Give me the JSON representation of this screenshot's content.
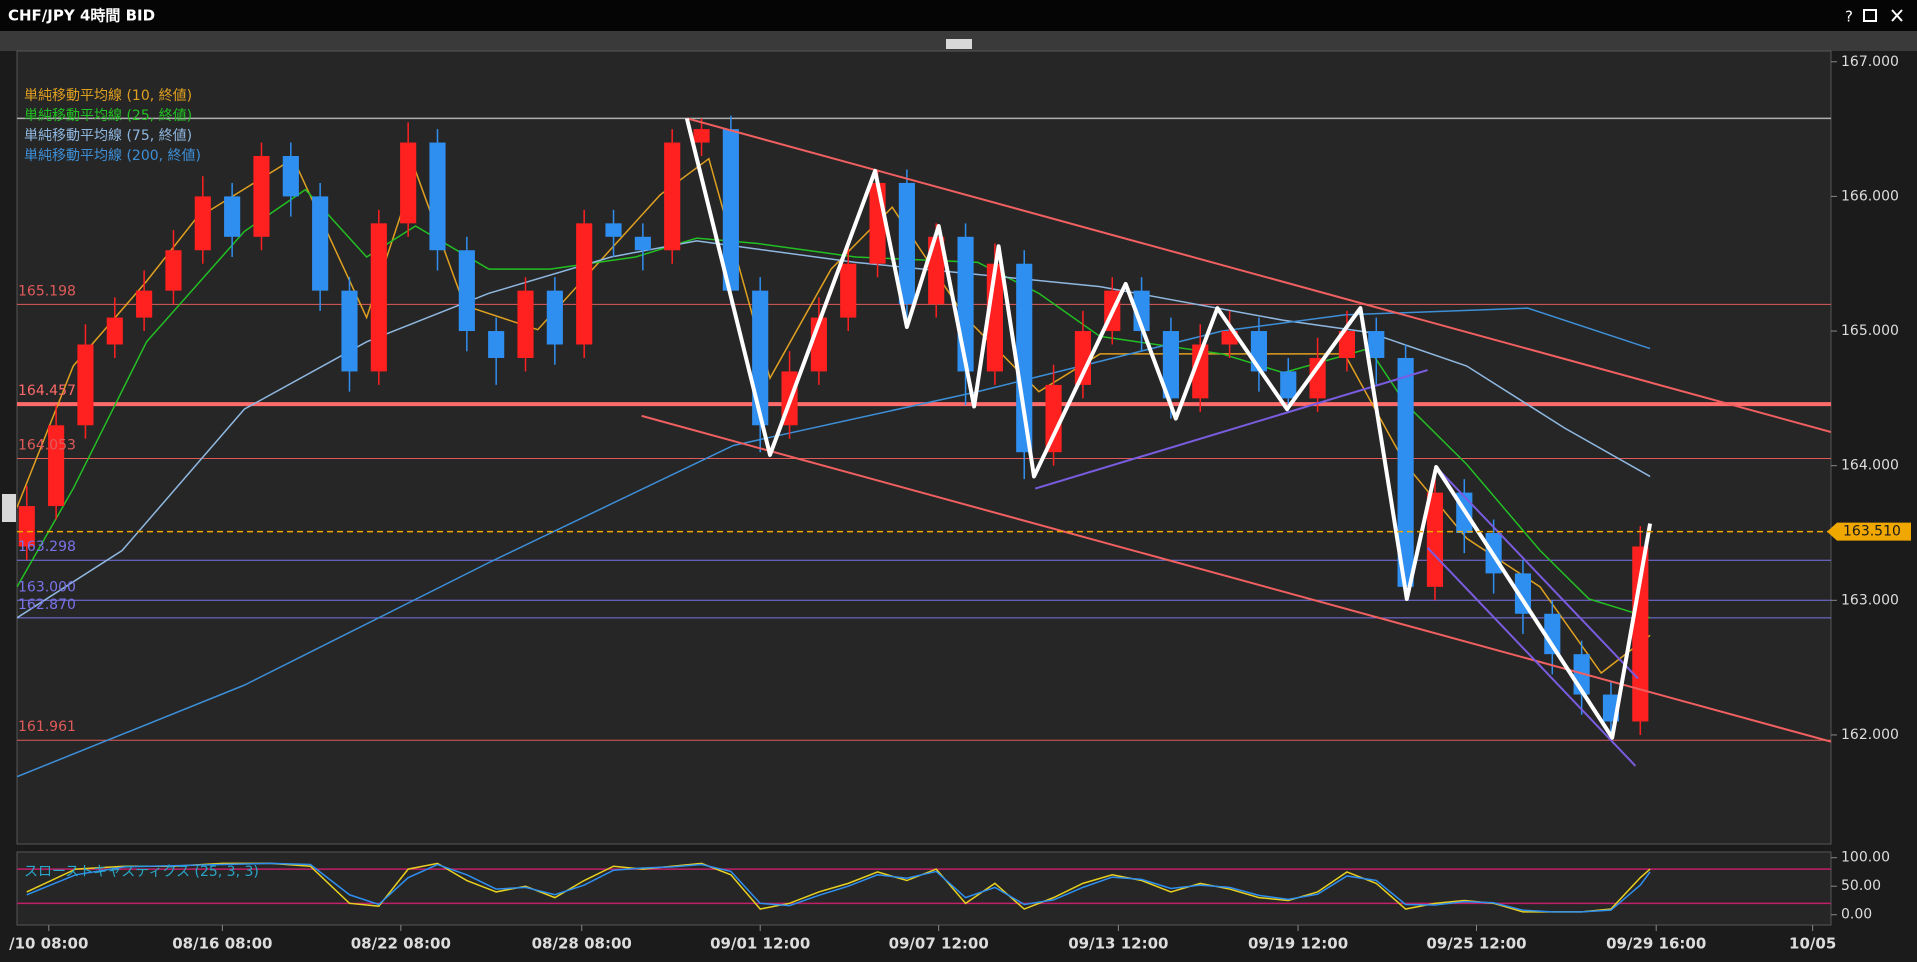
{
  "window": {
    "title": "CHF/JPY 4時間 BID",
    "help": "?"
  },
  "chart_data": [
    {
      "type": "candlestick",
      "xlim": [
        0,
        371
      ],
      "ylim": [
        161.19,
        167.08
      ],
      "yticks": [
        {
          "value": 162,
          "label": "162.000"
        },
        {
          "value": 163,
          "label": "163.000"
        },
        {
          "value": 164,
          "label": "164.000"
        },
        {
          "value": 165,
          "label": "165.000"
        },
        {
          "value": 166,
          "label": "166.000"
        },
        {
          "value": 167,
          "label": "167.000"
        }
      ],
      "xticks": [
        {
          "value": 6.5,
          "label": "/10 08:00"
        },
        {
          "value": 42,
          "label": "08/16 08:00"
        },
        {
          "value": 78.5,
          "label": "08/22 08:00"
        },
        {
          "value": 115.5,
          "label": "08/28 08:00"
        },
        {
          "value": 152,
          "label": "09/01 12:00"
        },
        {
          "value": 188.5,
          "label": "09/07 12:00"
        },
        {
          "value": 225.25,
          "label": "09/13 12:00"
        },
        {
          "value": 262,
          "label": "09/19 12:00"
        },
        {
          "value": 298.5,
          "label": "09/25 12:00"
        },
        {
          "value": 335.25,
          "label": "09/29 16:00"
        },
        {
          "value": 367.25,
          "label": "10/05"
        }
      ],
      "up_color": "#ff2020",
      "down_color": "#2f8ff0",
      "candles": {
        "x": [
          2,
          8,
          14,
          20,
          26,
          32,
          38,
          44,
          50,
          56,
          62,
          68,
          74,
          80,
          86,
          92,
          98,
          104,
          110,
          116,
          122,
          128,
          134,
          140,
          146,
          152,
          158,
          164,
          170,
          176,
          182,
          188,
          194,
          200,
          206,
          212,
          218,
          224,
          230,
          236,
          242,
          248,
          254,
          260,
          266,
          272,
          278,
          284,
          290,
          296,
          302,
          308,
          314,
          320,
          326,
          332
        ],
        "open": [
          163.4,
          163.7,
          164.3,
          164.9,
          165.1,
          165.3,
          165.6,
          166.0,
          165.7,
          166.3,
          166.0,
          165.3,
          164.7,
          165.8,
          166.4,
          165.6,
          165.0,
          164.8,
          165.3,
          164.9,
          165.8,
          165.7,
          165.6,
          166.4,
          166.5,
          165.3,
          164.3,
          164.7,
          165.1,
          165.5,
          166.1,
          165.2,
          165.7,
          164.7,
          165.5,
          164.1,
          164.6,
          165.0,
          165.3,
          165.0,
          164.5,
          164.9,
          165.0,
          164.7,
          164.5,
          164.8,
          165.0,
          164.8,
          163.1,
          163.8,
          163.5,
          163.2,
          162.9,
          162.6,
          162.3,
          162.1
        ],
        "high": [
          163.85,
          164.45,
          165.05,
          165.25,
          165.45,
          165.75,
          166.15,
          166.1,
          166.4,
          166.4,
          166.1,
          165.4,
          165.9,
          166.55,
          166.5,
          165.7,
          165.1,
          165.4,
          165.4,
          165.9,
          165.9,
          165.8,
          166.5,
          166.58,
          166.6,
          165.4,
          164.85,
          165.25,
          165.65,
          166.2,
          166.2,
          165.8,
          165.8,
          165.65,
          165.6,
          164.75,
          165.15,
          165.4,
          165.4,
          165.1,
          165.05,
          165.15,
          165.1,
          164.8,
          164.95,
          165.15,
          165.1,
          164.9,
          163.95,
          163.9,
          163.6,
          163.3,
          163.0,
          162.7,
          162.4,
          163.55
        ],
        "low": [
          163.3,
          163.6,
          164.2,
          164.8,
          165.0,
          165.2,
          165.5,
          165.55,
          165.6,
          165.85,
          165.15,
          164.55,
          164.6,
          165.7,
          165.45,
          164.85,
          164.6,
          164.7,
          164.75,
          164.8,
          165.55,
          165.45,
          165.5,
          166.3,
          165.2,
          164.1,
          164.2,
          164.6,
          165.0,
          165.4,
          165.05,
          165.1,
          164.45,
          164.6,
          163.9,
          164.0,
          164.5,
          164.9,
          164.85,
          164.35,
          164.4,
          164.8,
          164.55,
          164.4,
          164.4,
          164.7,
          164.6,
          163.0,
          163.0,
          163.35,
          163.05,
          162.75,
          162.45,
          162.15,
          161.98,
          162.0
        ],
        "close": [
          163.7,
          164.3,
          164.9,
          165.1,
          165.3,
          165.6,
          166.0,
          165.7,
          166.3,
          166.0,
          165.3,
          164.7,
          165.8,
          166.4,
          165.6,
          165.0,
          164.8,
          165.3,
          164.9,
          165.8,
          165.7,
          165.6,
          166.4,
          166.5,
          165.3,
          164.3,
          164.7,
          165.1,
          165.5,
          166.1,
          165.2,
          165.7,
          164.7,
          165.5,
          164.1,
          164.6,
          165.0,
          165.3,
          165.0,
          164.5,
          164.9,
          165.0,
          164.7,
          164.5,
          164.8,
          165.0,
          164.8,
          163.1,
          163.8,
          163.5,
          163.2,
          162.9,
          162.6,
          162.3,
          162.1,
          163.4
        ]
      },
      "series": [
        {
          "name": "単純移動平均線 (10, 終値)",
          "color": "#e0a020",
          "x": [
            0,
            11.5,
            26.5,
            36.5,
            56.5,
            71.5,
            81.5,
            91.5,
            106.5,
            131.5,
            141.5,
            154,
            166.5,
            179,
            194,
            209,
            221.5,
            246.5,
            271.5,
            284,
            296.5,
            311.5,
            324,
            334
          ],
          "values": [
            163.69,
            164.74,
            165.37,
            165.83,
            166.28,
            165.1,
            166.19,
            165.19,
            165.01,
            166.01,
            166.28,
            164.65,
            165.46,
            165.92,
            165.1,
            164.55,
            164.83,
            164.83,
            164.83,
            164.01,
            163.46,
            163.1,
            162.46,
            162.74
          ]
        },
        {
          "name": "単純移動平均線 (25, 終値)",
          "color": "#22c022",
          "x": [
            0,
            11.5,
            26.5,
            46.5,
            59,
            71.5,
            81.5,
            96.5,
            109,
            126.5,
            139,
            151.5,
            171.5,
            196.5,
            209,
            221.5,
            246.5,
            259,
            276.5,
            284,
            296.5,
            311.5,
            321.5,
            334
          ],
          "values": [
            163.1,
            163.83,
            164.92,
            165.74,
            166.05,
            165.55,
            165.78,
            165.46,
            165.46,
            165.55,
            165.69,
            165.65,
            165.55,
            165.51,
            165.28,
            164.96,
            164.83,
            164.69,
            164.87,
            164.46,
            164.01,
            163.37,
            163.01,
            162.87
          ]
        },
        {
          "name": "単純移動平均線 (75, 終値)",
          "color": "#8fb8e0",
          "x": [
            0,
            21.5,
            46.5,
            71.5,
            96.5,
            121.5,
            139,
            171.5,
            221.5,
            259,
            276.5,
            296.5,
            316.5,
            334
          ],
          "values": [
            162.87,
            163.37,
            164.42,
            164.92,
            165.28,
            165.55,
            165.67,
            165.51,
            165.33,
            165.08,
            164.99,
            164.74,
            164.28,
            163.92
          ]
        },
        {
          "name": "単純移動平均線 (200, 終値)",
          "color": "#3d8fd8",
          "x": [
            0,
            46.5,
            96.5,
            146.5,
            196.5,
            246.5,
            271.5,
            309,
            334
          ],
          "values": [
            161.69,
            162.37,
            163.28,
            164.15,
            164.55,
            165.0,
            165.12,
            165.17,
            164.87
          ]
        }
      ],
      "high_line": 166.58,
      "high_line_color": "#b0b0b0",
      "levels": [
        165.198,
        164.457,
        164.053,
        163.298,
        {
          "value": 163,
          "label": "163.000"
        },
        {
          "value": 162.87,
          "label": "162.870"
        },
        161.961
      ],
      "level_colors": [
        "#e05a5a",
        "#ff6a6a",
        "#e05a5a",
        "#7a72e8",
        "#7a72e8",
        "#7a72e8",
        "#e05a5a"
      ],
      "level_widths": [
        1,
        4,
        1,
        1,
        1,
        1,
        1
      ],
      "current": {
        "value": 163.51,
        "label": "163.510"
      },
      "current_color": "#f0a800",
      "zigzag": {
        "color": "#ffffff",
        "x": [
          137,
          154,
          175.5,
          182,
          188.5,
          195.75,
          200.75,
          208,
          226.75,
          237,
          245.5,
          259.75,
          274.75,
          284.25,
          290.25,
          326.25,
          334
        ],
        "values": [
          166.58,
          164.08,
          166.19,
          165.03,
          165.78,
          164.44,
          165.63,
          163.92,
          165.35,
          164.35,
          165.17,
          164.42,
          165.17,
          163.01,
          163.99,
          161.98,
          163.57
        ]
      },
      "trendlines": [
        {
          "color": "#f06060",
          "x": [
            137,
            371
          ],
          "values": [
            166.58,
            164.25
          ]
        },
        {
          "color": "#f06060",
          "x": [
            127.75,
            371
          ],
          "values": [
            164.37,
            161.95
          ]
        },
        {
          "color": "#7a5ce0",
          "x": [
            208.25,
            288.5
          ],
          "values": [
            163.83,
            164.71
          ]
        },
        {
          "color": "#7a5ce0",
          "x": [
            290.25,
            331.5
          ],
          "values": [
            163.99,
            162.42
          ]
        },
        {
          "color": "#7a5ce0",
          "x": [
            288.5,
            331
          ],
          "values": [
            163.39,
            161.77
          ]
        }
      ]
    },
    {
      "type": "line",
      "title": "スローストキャスティクス (25, 3, 3)",
      "title_color": "#2aa7c8",
      "ylim": [
        -18,
        110
      ],
      "yticks": [
        {
          "value": 0,
          "label": "0.00"
        },
        {
          "value": 50,
          "label": "50.00"
        },
        {
          "value": 100,
          "label": "100.00"
        }
      ],
      "levels": [
        80,
        20
      ],
      "level_color": "#c0206a",
      "x": [
        2,
        12,
        22,
        32,
        42,
        52,
        60,
        68,
        74,
        80,
        86,
        92,
        98,
        104,
        110,
        116,
        122,
        128,
        134,
        140,
        146,
        152,
        158,
        164,
        170,
        176,
        182,
        188,
        194,
        200,
        206,
        212,
        218,
        224,
        230,
        236,
        242,
        248,
        254,
        260,
        266,
        272,
        278,
        284,
        290,
        296,
        302,
        308,
        314,
        320,
        326,
        332,
        334
      ],
      "series": [
        {
          "color": "#e8d020",
          "values": [
            40,
            80,
            85,
            85,
            90,
            90,
            85,
            20,
            15,
            80,
            90,
            60,
            40,
            50,
            30,
            60,
            85,
            80,
            85,
            90,
            70,
            10,
            20,
            40,
            55,
            75,
            60,
            80,
            20,
            55,
            10,
            30,
            55,
            70,
            60,
            40,
            55,
            45,
            30,
            25,
            40,
            75,
            55,
            10,
            20,
            25,
            20,
            5,
            5,
            5,
            10,
            65,
            80
          ]
        },
        {
          "color": "#2f8ff0",
          "values": [
            35,
            70,
            84,
            86,
            88,
            90,
            88,
            35,
            18,
            65,
            88,
            70,
            45,
            48,
            35,
            52,
            78,
            82,
            84,
            88,
            76,
            20,
            16,
            34,
            50,
            70,
            64,
            76,
            30,
            48,
            18,
            26,
            48,
            66,
            62,
            46,
            52,
            48,
            34,
            27,
            36,
            68,
            60,
            18,
            17,
            23,
            21,
            8,
            5,
            5,
            8,
            52,
            75
          ]
        }
      ]
    }
  ]
}
